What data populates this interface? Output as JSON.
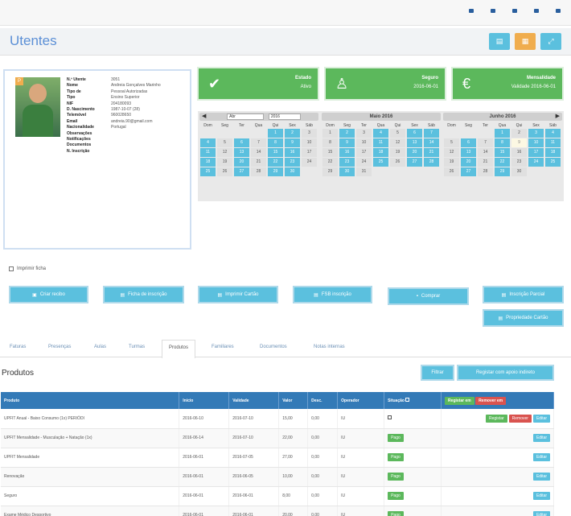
{
  "topnav": [
    "",
    "",
    "",
    "",
    ""
  ],
  "header": {
    "title": "Utentes",
    "buttons": [
      {
        "icon": "print-icon",
        "color": "#5bc0de"
      },
      {
        "icon": "document-icon",
        "color": "#f0ad4e"
      },
      {
        "icon": "expand-icon",
        "color": "#5bc0de"
      }
    ]
  },
  "profile": {
    "badge": "P",
    "rows": [
      {
        "k": "N.º Utente",
        "v": "3051"
      },
      {
        "k": "Nome",
        "v": "Andreia Gonçalves Marinho"
      },
      {
        "k": "Tipo de",
        "v": "Pessoal Autorizadas"
      },
      {
        "k": "Tipo",
        "v": "Ensino Superior"
      },
      {
        "k": "NIF",
        "v": "204180093"
      },
      {
        "k": "D. Nascimento",
        "v": "1987-10-07 (28)"
      },
      {
        "k": "Telemóvel",
        "v": "960028650"
      },
      {
        "k": "Email",
        "v": "andreia.90@gmail.com"
      },
      {
        "k": "Nacionalidade",
        "v": "Portugal"
      },
      {
        "k": "Observações",
        "v": ""
      },
      {
        "k": "Notificações",
        "v": ""
      },
      {
        "k": "Documentos",
        "v": ""
      },
      {
        "k": "N. Inscrição",
        "v": ""
      }
    ]
  },
  "stats": [
    {
      "label": "Estado",
      "value": "Ativo",
      "icon": "check-icon"
    },
    {
      "label": "Seguro",
      "value": "2016-06-01",
      "icon": "user-icon"
    },
    {
      "label": "Mensalidade",
      "value": "Validade 2016-06-01",
      "icon": "euro-icon"
    }
  ],
  "calendars": {
    "select_month": "Abr",
    "select_year": "2016",
    "dow": [
      "Dom",
      "Seg",
      "Ter",
      "Qua",
      "Qui",
      "Sex",
      "Sáb"
    ],
    "months": [
      {
        "title": "",
        "cells": [
          "",
          "1",
          "2",
          "3",
          "4",
          "5",
          "6",
          "7",
          "8",
          "9",
          "10",
          "11",
          "12",
          "13",
          "14",
          "15",
          "16",
          "17",
          "18",
          "19",
          "20",
          "21",
          "22",
          "23",
          "24",
          "25",
          "26",
          "27",
          "28",
          "29",
          "30"
        ],
        "lead": 4
      },
      {
        "title": "Maio 2016",
        "cells": [
          "1",
          "2",
          "3",
          "4",
          "5",
          "6",
          "7",
          "8",
          "9",
          "10",
          "11",
          "12",
          "13",
          "14",
          "15",
          "16",
          "17",
          "18",
          "19",
          "20",
          "21",
          "22",
          "23",
          "24",
          "25",
          "26",
          "27",
          "28",
          "29",
          "30",
          "31"
        ],
        "lead": 0
      },
      {
        "title": "Junho 2016",
        "cells": [
          "1",
          "2",
          "3",
          "4",
          "5",
          "6",
          "7",
          "8",
          "9",
          "10",
          "11",
          "12",
          "13",
          "14",
          "15",
          "16",
          "17",
          "18",
          "19",
          "20",
          "21",
          "22",
          "23",
          "24",
          "25",
          "26",
          "27",
          "28",
          "29",
          "30"
        ],
        "lead": 3
      }
    ]
  },
  "checkbox_label": "Imprimir ficha",
  "actions": [
    {
      "label": "Criar recibo",
      "icon": "receipt-icon"
    },
    {
      "label": "Ficha de inscrição",
      "icon": "form-icon"
    },
    {
      "label": "Imprimir Cartão",
      "icon": "card-icon"
    },
    {
      "label": "FSB inscrição",
      "icon": "doc-icon"
    },
    {
      "label": "Comprar",
      "icon": "cart-icon"
    },
    {
      "label": "Inscrição Parcial",
      "icon": "list-icon"
    },
    {
      "label": "Propriedade Cartão",
      "icon": "card-icon"
    }
  ],
  "tabs": [
    "Faturas",
    "Presenças",
    "Aulas",
    "Turmas",
    "Produtos",
    "Familiares",
    "Documentos",
    "Notas internas"
  ],
  "active_tab": 4,
  "section": {
    "title": "Produtos",
    "btn_filter": "Filtrar",
    "btn_register": "Registar com apoio indireto"
  },
  "table": {
    "headers": [
      "Produto",
      "Início",
      "Validade",
      "Valor",
      "Desc.",
      "Operador",
      "Situação",
      ""
    ],
    "header_actions": [
      "Registar em",
      "Remover em"
    ],
    "rows": [
      {
        "produto": "UPFIT Anual - Baixo Consumo (1x) PERIÓDI",
        "inicio": "2016-06-10",
        "validade": "2016-07-10",
        "valor": "15,00",
        "desc": "0,00",
        "operador": "IU",
        "status": "check",
        "actions": [
          "Registar",
          "Remover",
          "Editar"
        ]
      },
      {
        "produto": "UPFIT Mensalidade - Musculação + Natação (1x)",
        "inicio": "2016-06-14",
        "validade": "2016-07-10",
        "valor": "22,00",
        "desc": "0,00",
        "operador": "IU",
        "status": "Pago",
        "actions": [
          "Editar"
        ]
      },
      {
        "produto": "UPFIT Mensalidade",
        "inicio": "2016-06-01",
        "validade": "2016-07-05",
        "valor": "27,00",
        "desc": "0,00",
        "operador": "IU",
        "status": "Pago",
        "actions": [
          "Editar"
        ]
      },
      {
        "produto": "Renovação",
        "inicio": "2016-06-01",
        "validade": "2016-06-05",
        "valor": "10,00",
        "desc": "0,00",
        "operador": "IU",
        "status": "Pago",
        "actions": [
          "Editar"
        ]
      },
      {
        "produto": "Seguro",
        "inicio": "2016-06-01",
        "validade": "2016-06-01",
        "valor": "8,00",
        "desc": "0,00",
        "operador": "IU",
        "status": "Pago",
        "actions": [
          "Editar"
        ]
      },
      {
        "produto": "Exame Médico Desportivo",
        "inicio": "2016-06-01",
        "validade": "2016-06-01",
        "valor": "20,00",
        "desc": "0,00",
        "operador": "IU",
        "status": "Pago",
        "actions": [
          "Editar"
        ]
      }
    ]
  }
}
